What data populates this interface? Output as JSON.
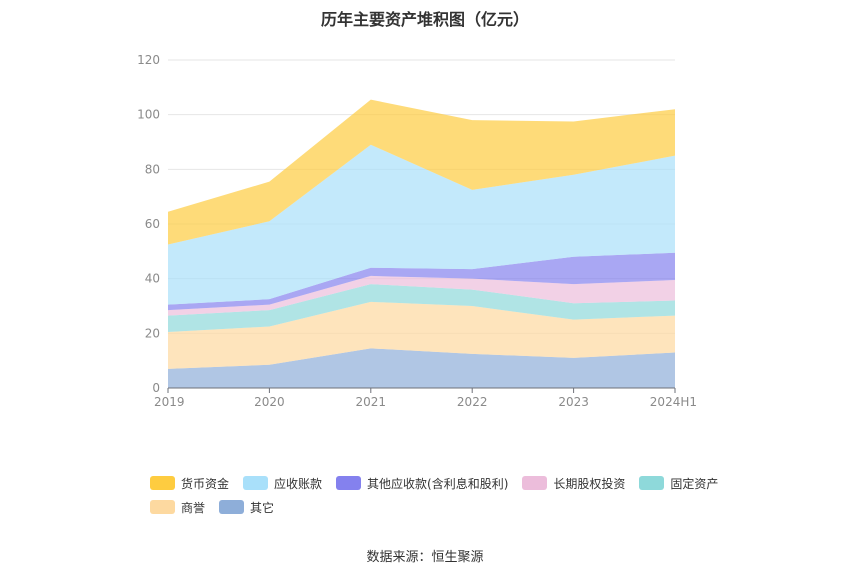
{
  "chart_data": {
    "type": "area",
    "stacked": true,
    "title": "历年主要资产堆积图（亿元）",
    "categories": [
      "2019",
      "2020",
      "2021",
      "2022",
      "2023",
      "2024H1"
    ],
    "ylim": [
      0,
      120
    ],
    "yticks": [
      0,
      20,
      40,
      60,
      80,
      100,
      120
    ],
    "grid": true,
    "legend_position": "bottom",
    "series": [
      {
        "name": "其它",
        "color": "#8eaed9",
        "values": [
          7,
          8.5,
          14.5,
          12.5,
          11,
          13
        ]
      },
      {
        "name": "商誉",
        "color": "#fdd9a0",
        "values": [
          13.5,
          14,
          17,
          17.5,
          14,
          13.5
        ]
      },
      {
        "name": "固定资产",
        "color": "#8ed9da",
        "values": [
          6,
          6,
          6.5,
          6,
          6,
          5.5
        ]
      },
      {
        "name": "长期股权投资",
        "color": "#ecbddb",
        "values": [
          2,
          2,
          3,
          4,
          7,
          7.5
        ]
      },
      {
        "name": "其他应收款(含利息和股利)",
        "color": "#8481ee",
        "values": [
          2,
          2,
          3,
          3.5,
          10,
          10
        ]
      },
      {
        "name": "应收账款",
        "color": "#a9e0fa",
        "values": [
          22,
          28.5,
          45,
          29,
          30,
          35.5
        ]
      },
      {
        "name": "货币资金",
        "color": "#fecc40",
        "values": [
          12,
          14.5,
          16.5,
          25.5,
          19.5,
          17
        ]
      }
    ]
  },
  "legend": {
    "items": [
      {
        "label": "货币资金",
        "color": "#fecc40"
      },
      {
        "label": "应收账款",
        "color": "#a9e0fa"
      },
      {
        "label": "其他应收款(含利息和股利)",
        "color": "#8481ee"
      },
      {
        "label": "长期股权投资",
        "color": "#ecbddb"
      },
      {
        "label": "固定资产",
        "color": "#8ed9da"
      },
      {
        "label": "商誉",
        "color": "#fdd9a0"
      },
      {
        "label": "其它",
        "color": "#8eaed9"
      }
    ]
  },
  "source": "数据来源：恒生聚源"
}
